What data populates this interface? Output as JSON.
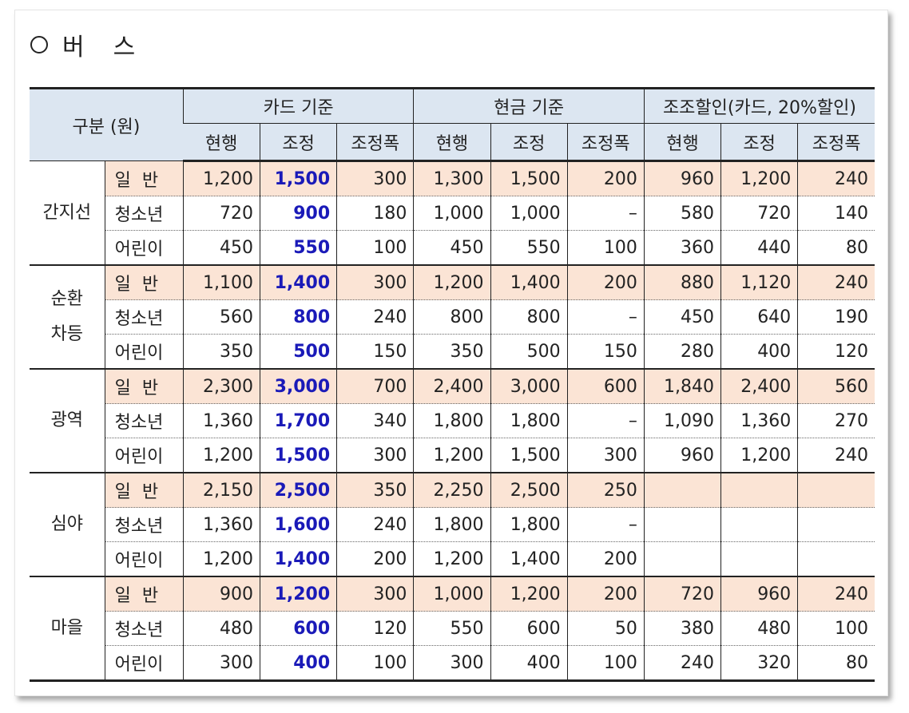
{
  "title": {
    "symbol": "○",
    "text1": "버",
    "text2": "스"
  },
  "header": {
    "category": "구분 (원)",
    "groups": [
      "카드 기준",
      "현금 기준",
      "조조할인(카드, 20%할인)"
    ],
    "subcols": [
      "현행",
      "조정",
      "조정폭",
      "현행",
      "조정",
      "조정폭",
      "현행",
      "조정",
      "조정폭"
    ]
  },
  "sections": [
    {
      "name": "간지선",
      "rows": [
        {
          "label": "일  반",
          "values": [
            "1,200",
            "1,500",
            "300",
            "1,300",
            "1,500",
            "200",
            "960",
            "1,200",
            "240"
          ]
        },
        {
          "label": "청소년",
          "values": [
            "720",
            "900",
            "180",
            "1,000",
            "1,000",
            "–",
            "580",
            "720",
            "140"
          ]
        },
        {
          "label": "어린이",
          "values": [
            "450",
            "550",
            "100",
            "450",
            "550",
            "100",
            "360",
            "440",
            "80"
          ]
        }
      ]
    },
    {
      "name": "순환\n차등",
      "rows": [
        {
          "label": "일  반",
          "values": [
            "1,100",
            "1,400",
            "300",
            "1,200",
            "1,400",
            "200",
            "880",
            "1,120",
            "240"
          ]
        },
        {
          "label": "청소년",
          "values": [
            "560",
            "800",
            "240",
            "800",
            "800",
            "–",
            "450",
            "640",
            "190"
          ]
        },
        {
          "label": "어린이",
          "values": [
            "350",
            "500",
            "150",
            "350",
            "500",
            "150",
            "280",
            "400",
            "120"
          ]
        }
      ]
    },
    {
      "name": "광역",
      "rows": [
        {
          "label": "일  반",
          "values": [
            "2,300",
            "3,000",
            "700",
            "2,400",
            "3,000",
            "600",
            "1,840",
            "2,400",
            "560"
          ]
        },
        {
          "label": "청소년",
          "values": [
            "1,360",
            "1,700",
            "340",
            "1,800",
            "1,800",
            "–",
            "1,090",
            "1,360",
            "270"
          ]
        },
        {
          "label": "어린이",
          "values": [
            "1,200",
            "1,500",
            "300",
            "1,200",
            "1,500",
            "300",
            "960",
            "1,200",
            "240"
          ]
        }
      ]
    },
    {
      "name": "심야",
      "rows": [
        {
          "label": "일  반",
          "values": [
            "2,150",
            "2,500",
            "350",
            "2,250",
            "2,500",
            "250",
            "",
            "",
            ""
          ]
        },
        {
          "label": "청소년",
          "values": [
            "1,360",
            "1,600",
            "240",
            "1,800",
            "1,800",
            "–",
            "",
            "",
            ""
          ]
        },
        {
          "label": "어린이",
          "values": [
            "1,200",
            "1,400",
            "200",
            "1,200",
            "1,400",
            "200",
            "",
            "",
            ""
          ]
        }
      ]
    },
    {
      "name": "마을",
      "rows": [
        {
          "label": "일  반",
          "values": [
            "900",
            "1,200",
            "300",
            "1,000",
            "1,200",
            "200",
            "720",
            "960",
            "240"
          ]
        },
        {
          "label": "청소년",
          "values": [
            "480",
            "600",
            "120",
            "550",
            "600",
            "50",
            "380",
            "480",
            "100"
          ]
        },
        {
          "label": "어린이",
          "values": [
            "300",
            "400",
            "100",
            "300",
            "400",
            "100",
            "240",
            "320",
            "80"
          ]
        }
      ]
    }
  ],
  "colors": {
    "header_bg": "#dce6f1",
    "general_row_bg": "#fbe4d5",
    "adjusted_text": "#1a1ab8"
  }
}
